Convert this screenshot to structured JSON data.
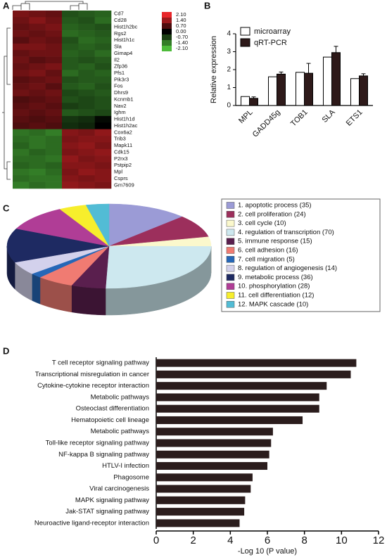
{
  "chart_data": [
    {
      "type": "heatmap",
      "panel": "A",
      "rows": [
        "Cd7",
        "Cd28",
        "Hist1h2bc",
        "Rgs2",
        "Hist1h1c",
        "Sla",
        "Gimap4",
        "Il2",
        "Zfp36",
        "Pfs1",
        "Pik3r3",
        "Fos",
        "Dhrs9",
        "Kcnmb1",
        "Nav2",
        "Ighm",
        "Hist1h1d",
        "Hist1h2ac",
        "Cox6a2",
        "Trib3",
        "Mapk11",
        "Cdk15",
        "P2rx3",
        "Pstpip2",
        "Mpl",
        "Csprs",
        "Gm7609"
      ],
      "columns": [
        null,
        null,
        null,
        null,
        null,
        null
      ],
      "values": [
        [
          1.1,
          1.0,
          0.9,
          -0.9,
          -1.0,
          -1.1
        ],
        [
          1.0,
          1.2,
          1.0,
          -1.0,
          -0.9,
          -1.2
        ],
        [
          0.9,
          1.0,
          1.1,
          -1.1,
          -1.0,
          -0.9
        ],
        [
          1.0,
          0.9,
          1.0,
          -1.2,
          -1.1,
          -1.0
        ],
        [
          0.8,
          1.0,
          0.9,
          -0.9,
          -1.2,
          -1.1
        ],
        [
          1.1,
          1.1,
          1.0,
          -1.0,
          -1.1,
          -1.0
        ],
        [
          0.9,
          1.0,
          1.0,
          -1.1,
          -1.0,
          -1.2
        ],
        [
          1.0,
          0.8,
          0.9,
          -1.0,
          -0.9,
          -1.0
        ],
        [
          0.9,
          1.0,
          1.1,
          -1.0,
          -1.1,
          -0.9
        ],
        [
          1.0,
          1.1,
          0.9,
          -1.2,
          -1.0,
          -1.1
        ],
        [
          0.8,
          0.9,
          1.0,
          -0.9,
          -1.0,
          -1.0
        ],
        [
          0.9,
          1.0,
          0.8,
          -1.0,
          -1.1,
          -0.9
        ],
        [
          1.0,
          0.9,
          1.0,
          -0.8,
          -0.9,
          -1.0
        ],
        [
          0.7,
          0.8,
          0.9,
          -0.9,
          -0.8,
          -0.9
        ],
        [
          0.8,
          0.9,
          0.8,
          -0.7,
          -0.8,
          -0.9
        ],
        [
          0.9,
          0.8,
          0.9,
          -1.0,
          -0.9,
          -0.8
        ],
        [
          0.8,
          0.7,
          0.8,
          -0.6,
          -0.5,
          -0.1
        ],
        [
          0.7,
          0.8,
          0.7,
          -0.5,
          -0.4,
          0.0
        ],
        [
          -1.3,
          -1.2,
          -1.4,
          1.2,
          1.1,
          1.3
        ],
        [
          -1.2,
          -1.3,
          -1.2,
          1.1,
          1.2,
          1.2
        ],
        [
          -1.1,
          -1.3,
          -1.2,
          1.2,
          1.3,
          1.1
        ],
        [
          -1.3,
          -1.1,
          -1.2,
          1.1,
          1.2,
          1.3
        ],
        [
          -1.2,
          -1.2,
          -1.3,
          1.3,
          1.1,
          1.2
        ],
        [
          -1.1,
          -1.2,
          -1.1,
          1.2,
          1.2,
          1.1
        ],
        [
          -1.3,
          -1.4,
          -1.2,
          1.1,
          1.3,
          1.2
        ],
        [
          -1.2,
          -1.3,
          -1.3,
          1.2,
          1.1,
          1.2
        ],
        [
          -1.4,
          -1.2,
          -1.3,
          1.3,
          1.2,
          1.1
        ]
      ],
      "colorbar_ticks": [
        {
          "value": 2.1,
          "label": "2.10"
        },
        {
          "value": 1.4,
          "label": "1.40"
        },
        {
          "value": 0.7,
          "label": "0.70"
        },
        {
          "value": 0,
          "label": "0.00"
        },
        {
          "value": -0.7,
          "label": "-0.70"
        },
        {
          "value": -1.4,
          "label": "-1.40"
        },
        {
          "value": -2.1,
          "label": "-2.10"
        }
      ],
      "colors": {
        "high": "#e8262a",
        "mid": "#000000",
        "low": "#4dbb3a"
      }
    },
    {
      "type": "bar",
      "panel": "B",
      "y_label": "Relative expression",
      "categories": [
        "MPL",
        "GADD45g",
        "TOB1",
        "SLA",
        "ETS1"
      ],
      "series": [
        {
          "name": "microarray",
          "color": "#ffffff",
          "values": [
            0.5,
            1.6,
            1.85,
            2.7,
            1.5
          ]
        },
        {
          "name": "qRT-PCR",
          "color": "#2e1a1a",
          "values": [
            0.4,
            1.75,
            1.8,
            2.95,
            1.65
          ],
          "errors": [
            0.08,
            0.12,
            0.55,
            0.35,
            0.12
          ]
        }
      ],
      "ylim": [
        0,
        4
      ],
      "yticks": [
        0,
        1,
        2,
        3,
        4
      ]
    },
    {
      "type": "pie",
      "panel": "C",
      "labels": [
        "1. apoptotic process (35)",
        "2. cell proliferation (24)",
        "3. cell cycle (10)",
        "4. regulation of transcription (70)",
        "5. immune response (15)",
        "6. cell adhesion (16)",
        "7. cell migration (5)",
        "8. regulation of angiogenesis (14)",
        "9. metabolic process (36)",
        "10. phosphorylation (28)",
        "11. cell differentiation (12)",
        "12. MAPK cascade (10)"
      ],
      "values": [
        35,
        24,
        10,
        70,
        15,
        16,
        5,
        14,
        36,
        28,
        12,
        10
      ],
      "colors": [
        "#9b9bd6",
        "#9c2f5c",
        "#fbf8cc",
        "#cde8ef",
        "#5a1f4e",
        "#f07b72",
        "#2667b7",
        "#d3d1ec",
        "#1e2a62",
        "#b03d96",
        "#f7ee2c",
        "#52bcd5"
      ]
    },
    {
      "type": "barh",
      "panel": "D",
      "x_label": "-Log 10 (P value)",
      "color": "#2b1d1d",
      "categories": [
        "T cell receptor signaling pathway",
        "Transcriptional misregulation in cancer",
        "Cytokine-cytokine receptor interaction",
        "Metabolic pathways",
        "Osteoclast differentiation",
        "Hematopoietic cell lineage",
        "Metabolic pathways",
        "Toll-like receptor signaling pathway",
        "NF-kappa B signaling pathway",
        "HTLV-I infection",
        "Phagosome",
        "Viral carcinogenesis",
        "MAPK signaling pathway",
        "Jak-STAT signaling pathway",
        "Neuroactive ligand-receptor interaction"
      ],
      "values": [
        10.8,
        10.5,
        9.2,
        8.8,
        8.8,
        7.9,
        6.3,
        6.2,
        6.1,
        6.0,
        5.2,
        5.1,
        4.8,
        4.75,
        4.5
      ],
      "xlim": [
        0,
        12
      ],
      "xticks": [
        0,
        2,
        4,
        6,
        8,
        10,
        12
      ]
    }
  ]
}
